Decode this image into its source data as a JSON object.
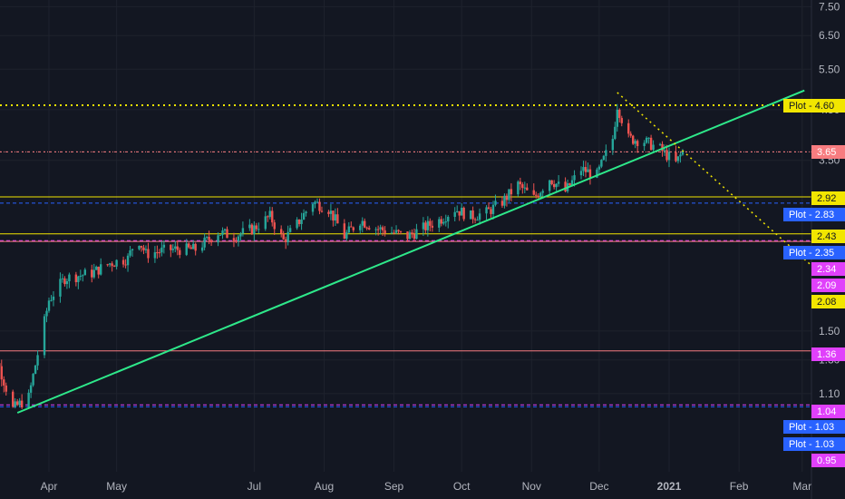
{
  "colors": {
    "background": "#131722",
    "grid": "#1e222d",
    "up": "#26a69a",
    "down": "#ef5350",
    "trendline": "#2ee88a",
    "dotted": "#f2e600",
    "yellow": "#f2e600",
    "pink": "#f77c80",
    "magenta": "#e040fb",
    "blue": "#2962ff",
    "axis_text": "#b2b5be"
  },
  "chart_data": {
    "type": "candlestick",
    "title": "",
    "xlabel": "",
    "ylabel": "",
    "y_scale": "log",
    "ylim": [
      0.88,
      7.6
    ],
    "x_tick_labels": [
      "Apr",
      "May",
      "Jul",
      "Aug",
      "Sep",
      "Oct",
      "Nov",
      "Dec",
      "2021",
      "Feb",
      "Mar"
    ],
    "y_tick_labels": [
      "7.50",
      "6.50",
      "5.50",
      "4.50",
      "3.50",
      "1.50",
      "1.30",
      "1.10"
    ],
    "last_price": "3.65",
    "trendlines": [
      {
        "style": "solid",
        "color": "green",
        "from": {
          "date": "2020-03-18",
          "price": 1.0
        },
        "to": {
          "date": "2021-03-02",
          "price": 4.95
        }
      },
      {
        "style": "dotted",
        "color": "yellow",
        "from": {
          "date": "2020-12-09",
          "price": 4.9
        },
        "to": {
          "date": "2021-03-05",
          "price": 2.08
        }
      }
    ],
    "horizontal_lines": [
      {
        "price": 4.6,
        "color": "yellow",
        "style": "dotted",
        "label": "Plot - 4.60"
      },
      {
        "price": 3.65,
        "color": "pink",
        "style": "dotted",
        "label": "3.65"
      },
      {
        "price": 2.92,
        "color": "yellow",
        "style": "solid",
        "label": "2.92"
      },
      {
        "price": 2.83,
        "color": "blue",
        "style": "dashed",
        "label": "Plot - 2.83"
      },
      {
        "price": 2.43,
        "color": "yellow",
        "style": "solid",
        "label": "2.43"
      },
      {
        "price": 2.35,
        "color": "magenta",
        "style": "dashed",
        "label": "Plot - 2.35"
      },
      {
        "price": 2.34,
        "color": "pink",
        "style": "solid",
        "label": "2.34"
      },
      {
        "price": 2.09,
        "color": "magenta",
        "style": "none",
        "label": "2.09"
      },
      {
        "price": 2.08,
        "color": "yellow",
        "style": "none",
        "label": "2.08"
      },
      {
        "price": 1.36,
        "color": "pink",
        "style": "solid",
        "label": "1.36"
      },
      {
        "price": 1.04,
        "color": "magenta",
        "style": "dashed",
        "label": "1.04"
      },
      {
        "price": 1.03,
        "color": "blue",
        "style": "dashed",
        "label": "Plot - 1.03"
      },
      {
        "price": 1.03,
        "color": "blue",
        "style": "none",
        "label": "Plot - 1.03"
      },
      {
        "price": 0.95,
        "color": "magenta",
        "style": "none",
        "label": "0.95"
      }
    ],
    "price_path": [
      [
        "2020-03-02",
        1.65
      ],
      [
        "2020-03-09",
        1.3
      ],
      [
        "2020-03-16",
        1.02
      ],
      [
        "2020-03-23",
        1.08
      ],
      [
        "2020-04-01",
        1.75
      ],
      [
        "2020-04-08",
        1.95
      ],
      [
        "2020-04-20",
        2.0
      ],
      [
        "2020-04-28",
        2.1
      ],
      [
        "2020-05-06",
        2.15
      ],
      [
        "2020-05-10",
        2.4
      ],
      [
        "2020-05-14",
        2.2
      ],
      [
        "2020-05-25",
        2.25
      ],
      [
        "2020-06-05",
        2.25
      ],
      [
        "2020-06-15",
        2.45
      ],
      [
        "2020-06-22",
        2.4
      ],
      [
        "2020-07-01",
        2.5
      ],
      [
        "2020-07-08",
        2.65
      ],
      [
        "2020-07-14",
        2.35
      ],
      [
        "2020-07-20",
        2.55
      ],
      [
        "2020-07-27",
        2.85
      ],
      [
        "2020-08-03",
        2.75
      ],
      [
        "2020-08-06",
        2.6
      ],
      [
        "2020-08-10",
        2.4
      ],
      [
        "2020-08-17",
        2.6
      ],
      [
        "2020-08-24",
        2.5
      ],
      [
        "2020-08-31",
        2.45
      ],
      [
        "2020-09-07",
        2.4
      ],
      [
        "2020-09-14",
        2.5
      ],
      [
        "2020-09-21",
        2.6
      ],
      [
        "2020-09-28",
        2.75
      ],
      [
        "2020-10-05",
        2.65
      ],
      [
        "2020-10-12",
        2.7
      ],
      [
        "2020-10-19",
        2.85
      ],
      [
        "2020-10-26",
        3.1
      ],
      [
        "2020-11-02",
        2.9
      ],
      [
        "2020-11-09",
        3.2
      ],
      [
        "2020-11-16",
        3.0
      ],
      [
        "2020-11-23",
        3.35
      ],
      [
        "2020-11-30",
        3.25
      ],
      [
        "2020-12-07",
        3.9
      ],
      [
        "2020-12-09",
        4.6
      ],
      [
        "2020-12-14",
        3.9
      ],
      [
        "2020-12-21",
        3.85
      ],
      [
        "2020-12-28",
        3.7
      ],
      [
        "2021-01-04",
        3.45
      ],
      [
        "2021-01-07",
        3.65
      ]
    ]
  },
  "labels": {
    "plot_460": "Plot - 4.60",
    "last_365": "3.65",
    "y_292": "2.92",
    "plot_283": "Plot - 2.83",
    "y_243": "2.43",
    "plot_235": "Plot - 2.35",
    "y_234": "2.34",
    "y_209": "2.09",
    "y_208": "2.08",
    "y_136": "1.36",
    "y_104": "1.04",
    "plot_103a": "Plot - 1.03",
    "plot_103b": "Plot - 1.03",
    "y_095": "0.95"
  }
}
